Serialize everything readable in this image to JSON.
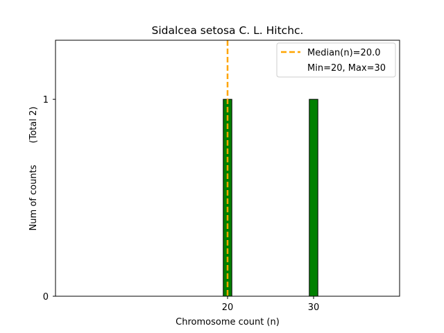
{
  "chart_data": {
    "type": "bar",
    "title": "Sidalcea setosa C. L. Hitchc.",
    "xlabel": "Chromosome count (n)",
    "ylabel": "Num of counts",
    "ylabel_total": "(Total 2)",
    "x": [
      20,
      30
    ],
    "values": [
      1,
      1
    ],
    "xticks": [
      "20",
      "30"
    ],
    "yticks": [
      "0",
      "1"
    ],
    "xlim": [
      0,
      40
    ],
    "ylim": [
      0,
      1.3
    ],
    "bar_width": 1,
    "median": 20.0,
    "legend": {
      "placement": "top-right",
      "median_label": "Median(n)=20.0",
      "range_label": "Min=20, Max=30"
    },
    "colors": {
      "bar_fill": "#008000",
      "bar_edge": "#000000",
      "median_line": "#ffa500"
    },
    "grid": false
  }
}
